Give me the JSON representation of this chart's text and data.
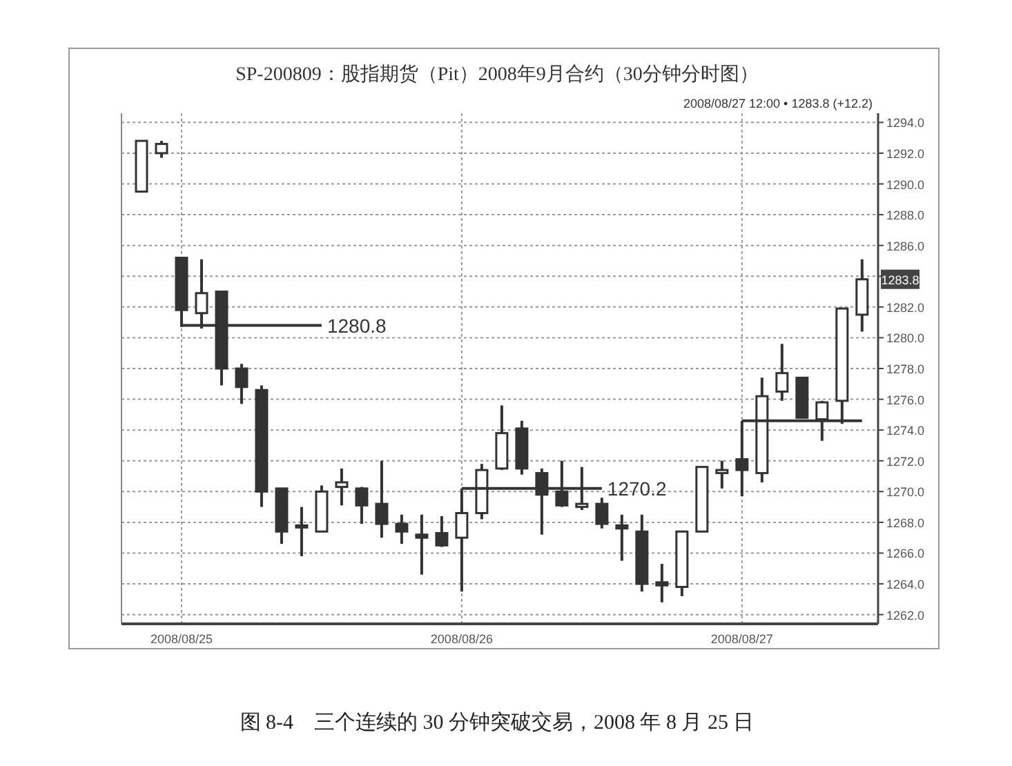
{
  "chart_data": {
    "type": "candlestick",
    "title": "SP-200809：股指期货（Pit）2008年9月合约（30分钟分时图）",
    "categories": [
      null,
      null,
      "2008/08/25",
      null,
      null,
      null,
      null,
      null,
      null,
      null,
      null,
      null,
      null,
      null,
      null,
      null,
      "2008/08/26",
      null,
      null,
      null,
      null,
      null,
      null,
      null,
      null,
      null,
      null,
      null,
      null,
      null,
      "2008/08/27",
      null,
      null,
      null,
      null,
      null,
      null
    ],
    "color": "#333333",
    "ohlc": [
      [
        1289.5,
        1292.8,
        1289.5,
        1292.8
      ],
      [
        1292.0,
        1292.8,
        1291.7,
        1292.6
      ],
      [
        1285.2,
        1285.2,
        1280.7,
        1281.8
      ],
      [
        1281.6,
        1285.1,
        1280.6,
        1282.9
      ],
      [
        1283.0,
        1283.0,
        1276.9,
        1278.0
      ],
      [
        1278.0,
        1278.3,
        1275.7,
        1276.8
      ],
      [
        1276.6,
        1276.9,
        1269.0,
        1270.0
      ],
      [
        1270.2,
        1270.2,
        1266.6,
        1267.4
      ],
      [
        1267.8,
        1269.0,
        1265.8,
        1267.7
      ],
      [
        1267.4,
        1270.4,
        1267.4,
        1270.0
      ],
      [
        1270.3,
        1271.5,
        1269.1,
        1270.6
      ],
      [
        1270.2,
        1270.3,
        1267.9,
        1269.1
      ],
      [
        1269.2,
        1272.0,
        1267.0,
        1267.9
      ],
      [
        1267.9,
        1268.5,
        1266.6,
        1267.4
      ],
      [
        1267.2,
        1268.5,
        1264.6,
        1267.0
      ],
      [
        1267.3,
        1268.4,
        1266.4,
        1266.5
      ],
      [
        1267.0,
        1270.2,
        1263.5,
        1268.6
      ],
      [
        1268.6,
        1271.8,
        1268.2,
        1271.4
      ],
      [
        1271.5,
        1275.6,
        1271.4,
        1273.8
      ],
      [
        1274.1,
        1274.6,
        1271.1,
        1271.5
      ],
      [
        1271.2,
        1271.5,
        1267.2,
        1269.8
      ],
      [
        1270.0,
        1272.0,
        1269.0,
        1269.1
      ],
      [
        1269.0,
        1271.6,
        1268.8,
        1269.2
      ],
      [
        1269.2,
        1269.6,
        1267.6,
        1267.9
      ],
      [
        1267.8,
        1268.5,
        1265.5,
        1267.6
      ],
      [
        1267.4,
        1268.5,
        1263.5,
        1264.0
      ],
      [
        1264.1,
        1265.3,
        1262.8,
        1263.9
      ],
      [
        1263.8,
        1267.4,
        1263.2,
        1267.4
      ],
      [
        1267.4,
        1271.6,
        1267.4,
        1271.6
      ],
      [
        1271.2,
        1272.0,
        1270.2,
        1271.4
      ],
      [
        1272.1,
        1274.6,
        1269.7,
        1271.4
      ],
      [
        1271.2,
        1277.4,
        1270.6,
        1276.2
      ],
      [
        1276.5,
        1279.6,
        1275.9,
        1277.7
      ],
      [
        1277.4,
        1277.4,
        1274.8,
        1274.8
      ],
      [
        1274.7,
        1275.9,
        1273.3,
        1275.8
      ],
      [
        1275.9,
        1281.9,
        1274.4,
        1281.9
      ],
      [
        1281.5,
        1285.1,
        1280.4,
        1283.8
      ]
    ],
    "series": [
      {
        "type": "line",
        "color": "#333333",
        "values": [
          null,
          null,
          1280.8,
          1280.8,
          1280.8,
          1280.8,
          1280.8,
          1280.8,
          1280.8,
          1280.8,
          null,
          null,
          null,
          null,
          null,
          null,
          null,
          null,
          null,
          null,
          null,
          null,
          null,
          null,
          null,
          null,
          null,
          null,
          null,
          null,
          null,
          null,
          null,
          null,
          null,
          null,
          null
        ],
        "value_labels": [
          null,
          null,
          null,
          null,
          null,
          null,
          null,
          null,
          null,
          "1280.8",
          null,
          null,
          null,
          null,
          null,
          null,
          null,
          null,
          null,
          null,
          null,
          null,
          null,
          null,
          null,
          null,
          null,
          null,
          null,
          null,
          null,
          null,
          null,
          null,
          null,
          null,
          null
        ]
      },
      {
        "type": "line",
        "color": "#333333",
        "values": [
          null,
          null,
          null,
          null,
          null,
          null,
          null,
          null,
          null,
          null,
          null,
          null,
          null,
          null,
          null,
          null,
          1270.2,
          1270.2,
          1270.2,
          1270.2,
          1270.2,
          1270.2,
          1270.2,
          1270.2,
          null,
          null,
          null,
          null,
          null,
          null,
          null,
          null,
          null,
          null,
          null,
          null,
          null
        ],
        "value_labels": [
          null,
          null,
          null,
          null,
          null,
          null,
          null,
          null,
          null,
          null,
          null,
          null,
          null,
          null,
          null,
          null,
          null,
          null,
          null,
          null,
          null,
          null,
          null,
          "1270.2",
          null,
          null,
          null,
          null,
          null,
          null,
          null,
          null,
          null,
          null,
          null,
          null,
          null
        ]
      },
      {
        "type": "line",
        "color": "#333333",
        "values": [
          null,
          null,
          null,
          null,
          null,
          null,
          null,
          null,
          null,
          null,
          null,
          null,
          null,
          null,
          null,
          null,
          null,
          null,
          null,
          null,
          null,
          null,
          null,
          null,
          null,
          null,
          null,
          null,
          null,
          null,
          1274.6,
          1274.6,
          1274.6,
          1274.6,
          1274.6,
          1274.6,
          1274.6
        ]
      }
    ],
    "ylim": [
      1261.4,
      1294.6
    ],
    "yticks": [
      {
        "value": 1262,
        "label": "1262.0"
      },
      {
        "value": 1264,
        "label": "1264.0"
      },
      {
        "value": 1266,
        "label": "1266.0"
      },
      {
        "value": 1268,
        "label": "1268.0"
      },
      {
        "value": 1270,
        "label": "1270.0"
      },
      {
        "value": 1272,
        "label": "1272.0"
      },
      {
        "value": 1274,
        "label": "1274.0"
      },
      {
        "value": 1276,
        "label": "1276.0"
      },
      {
        "value": 1278,
        "label": "1278.0"
      },
      {
        "value": 1280,
        "label": "1280.0"
      },
      {
        "value": 1282,
        "label": "1282.0"
      },
      {
        "value": 1284,
        "label": null
      },
      {
        "value": 1286,
        "label": "1286.0"
      },
      {
        "value": 1288,
        "label": "1288.0"
      },
      {
        "value": 1290,
        "label": "1290.0"
      },
      {
        "value": 1292,
        "label": "1292.0"
      },
      {
        "value": 1294,
        "label": "1294.0"
      }
    ],
    "grid": true,
    "annotations": [
      "2008/08/27 12:00 • 1283.8 (+12.2)",
      {
        "text": "1283.8",
        "y": 1283.8
      },
      "图 8-4　三个连续的 30 分钟突破交易，2008 年 8 月 25 日"
    ]
  }
}
